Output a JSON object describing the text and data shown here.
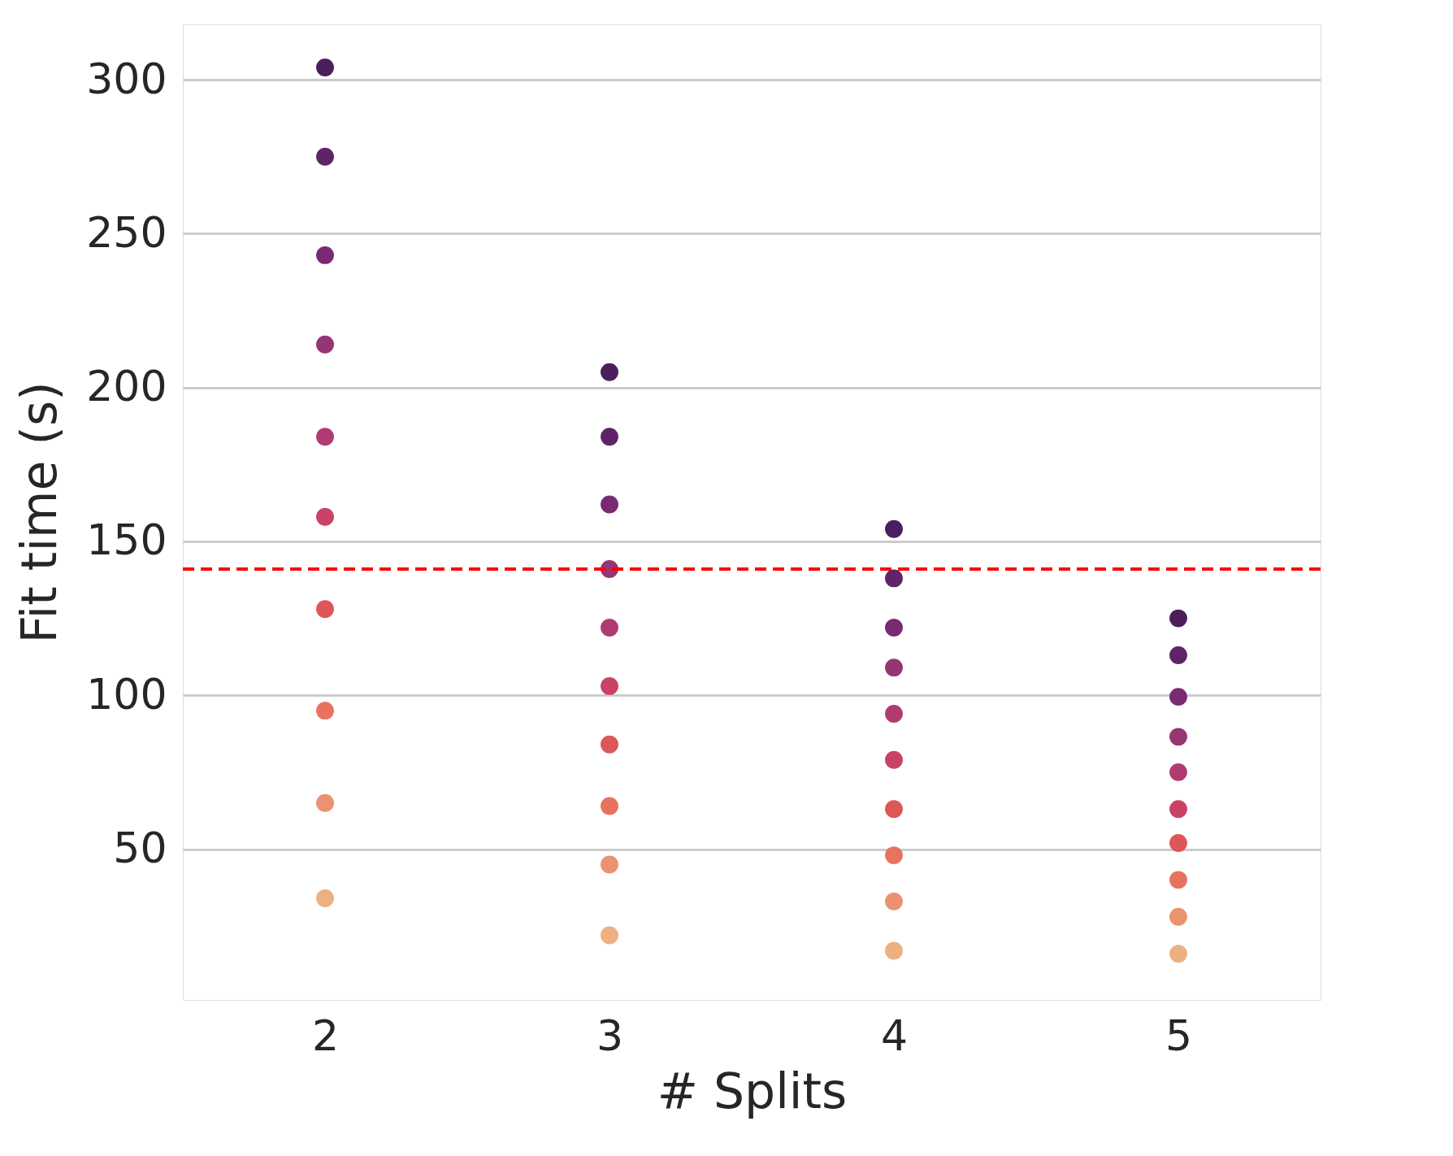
{
  "chart_data": {
    "type": "scatter",
    "xlabel": "# Splits",
    "ylabel": "Fit time (s)",
    "x": [
      2,
      3,
      4,
      5
    ],
    "xlim": [
      1.5,
      5.5
    ],
    "xticks": [
      2,
      3,
      4,
      5
    ],
    "ylim": [
      1,
      318
    ],
    "yticks": [
      50,
      100,
      150,
      200,
      250,
      300
    ],
    "grid": "y",
    "legend": false,
    "marker": "circle",
    "series": [
      {
        "color": "#4a1f5c",
        "values": [
          304,
          205,
          154,
          125
        ]
      },
      {
        "color": "#5f2468",
        "values": [
          275,
          184,
          138,
          113
        ]
      },
      {
        "color": "#7a2a72",
        "values": [
          243,
          162,
          122,
          99.5
        ]
      },
      {
        "color": "#963474",
        "values": [
          214,
          141,
          109,
          86.5
        ]
      },
      {
        "color": "#b03b72",
        "values": [
          184,
          122,
          94,
          75
        ]
      },
      {
        "color": "#ca4366",
        "values": [
          158,
          103,
          79,
          63
        ]
      },
      {
        "color": "#dd5658",
        "values": [
          128,
          84,
          63,
          52
        ]
      },
      {
        "color": "#e7735e",
        "values": [
          95,
          64,
          48,
          40
        ]
      },
      {
        "color": "#eb9270",
        "values": [
          65,
          45,
          33,
          28
        ]
      },
      {
        "color": "#edb081",
        "values": [
          34,
          22,
          17,
          16
        ]
      }
    ],
    "ref_lines": [
      {
        "axis": "y",
        "value": 141,
        "color": "#ff0000",
        "line_style": "dashed"
      }
    ]
  }
}
